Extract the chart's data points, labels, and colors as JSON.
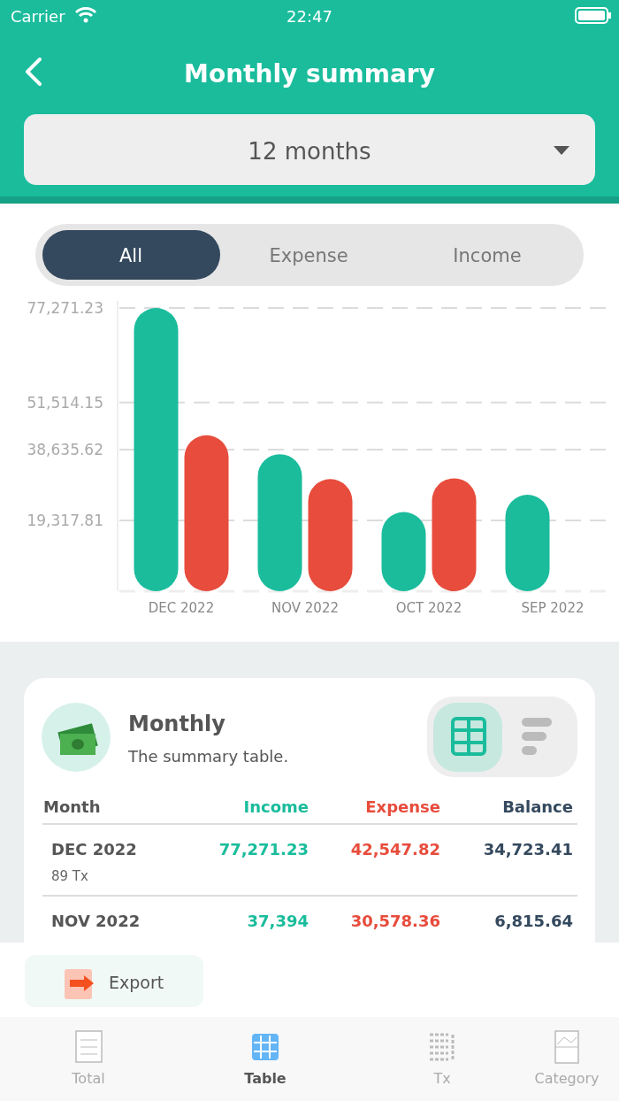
{
  "chart_data": [
    {
      "type": "bar",
      "title": "Monthly summary",
      "subtitle": "12 months",
      "annotations": [
        "Carrier",
        "22:47",
        "All",
        "Expense",
        "Income"
      ],
      "categories": [
        "DEC 2022",
        "NOV 2022",
        "OCT 2022",
        "SEP 2022"
      ],
      "series": [
        {
          "color": "#1abc9c",
          "values": [
            77271.23,
            37394,
            21600,
            26300
          ]
        },
        {
          "color": "#e74c3c",
          "values": [
            42547.82,
            30578.36,
            30800,
            null
          ]
        }
      ],
      "ylim": [
        0,
        77271.23
      ],
      "yticks": [
        {
          "value": 19317.81,
          "label": "19,317.81"
        },
        {
          "value": 38635.62,
          "label": "38,635.62"
        },
        {
          "value": 51514.15,
          "label": "51,514.15"
        },
        {
          "value": 77271.23,
          "label": "77,271.23"
        }
      ],
      "grid": "y"
    },
    {
      "type": "other",
      "title": "Monthly",
      "subtitle": "The summary table.",
      "annotations": [
        "Month",
        "Income",
        "Expense",
        "Balance",
        "DEC 2022",
        "77,271.23",
        "42,547.82",
        "34,723.41",
        "89 Tx",
        "NOV 2022",
        "37,394",
        "30,578.36",
        "6,815.64",
        "Export",
        "Total",
        "Table",
        "Tx",
        "Category"
      ]
    }
  ]
}
